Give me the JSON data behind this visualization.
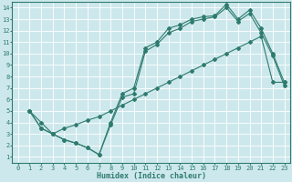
{
  "xlabel": "Humidex (Indice chaleur)",
  "xlim": [
    -0.5,
    23.5
  ],
  "ylim": [
    0.5,
    14.5
  ],
  "xticks": [
    0,
    1,
    2,
    3,
    4,
    5,
    6,
    7,
    8,
    9,
    10,
    11,
    12,
    13,
    14,
    15,
    16,
    17,
    18,
    19,
    20,
    21,
    22,
    23
  ],
  "yticks": [
    1,
    2,
    3,
    4,
    5,
    6,
    7,
    8,
    9,
    10,
    11,
    12,
    13,
    14
  ],
  "bg_color": "#cde8ec",
  "line_color": "#2e7b6e",
  "grid_color": "#ffffff",
  "line1_x": [
    1,
    2,
    3,
    4,
    5,
    6,
    7,
    8,
    9,
    10,
    11,
    12,
    13,
    14,
    15,
    16,
    17,
    18,
    19,
    20,
    21,
    22,
    23
  ],
  "line1_y": [
    5,
    3.5,
    3.0,
    2.5,
    2.2,
    1.8,
    1.2,
    4.0,
    6.5,
    7.0,
    10.5,
    11.0,
    12.2,
    12.5,
    13.0,
    13.2,
    13.3,
    14.3,
    13.0,
    13.8,
    12.2,
    10.0,
    7.5
  ],
  "line2_x": [
    1,
    2,
    3,
    4,
    5,
    6,
    7,
    8,
    9,
    10,
    11,
    12,
    13,
    14,
    15,
    16,
    17,
    18,
    19,
    20,
    21,
    22,
    23
  ],
  "line2_y": [
    5,
    3.5,
    3.0,
    2.5,
    2.2,
    1.8,
    1.2,
    3.8,
    6.2,
    6.5,
    10.2,
    10.8,
    11.8,
    12.2,
    12.8,
    13.0,
    13.2,
    14.0,
    12.8,
    13.5,
    11.8,
    9.8,
    7.2
  ],
  "line3_x": [
    1,
    2,
    3,
    4,
    5,
    6,
    7,
    8,
    9,
    10,
    11,
    12,
    13,
    14,
    15,
    16,
    17,
    18,
    19,
    20,
    21,
    22,
    23
  ],
  "line3_y": [
    5,
    4.0,
    3.0,
    3.5,
    3.8,
    4.2,
    4.5,
    5.0,
    5.5,
    6.0,
    6.5,
    7.0,
    7.5,
    8.0,
    8.5,
    9.0,
    9.5,
    10.0,
    10.5,
    11.0,
    11.5,
    7.5,
    7.5
  ],
  "marker": "D",
  "marker_size": 2.0,
  "lw": 0.8,
  "tick_fontsize": 5.0,
  "xlabel_fontsize": 6.0
}
